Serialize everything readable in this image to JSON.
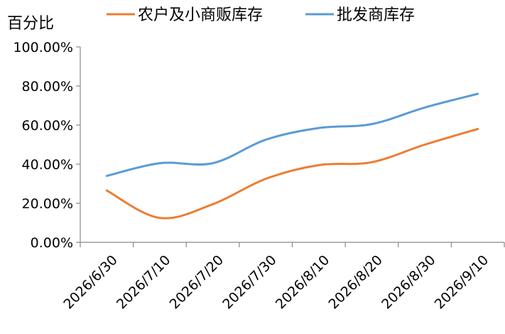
{
  "chart_data": {
    "type": "line",
    "title": "",
    "ylabel": "百分比",
    "xlabel": "",
    "categories": [
      "2026/6/30",
      "2026/7/10",
      "2026/7/20",
      "2026/7/30",
      "2026/8/10",
      "2026/8/20",
      "2026/8/30",
      "2026/9/10"
    ],
    "yticks": [
      "0.00%",
      "20.00%",
      "40.00%",
      "60.00%",
      "80.00%",
      "100.00%"
    ],
    "ylim": [
      0,
      100
    ],
    "legend_position": "top",
    "series": [
      {
        "name": "农户及小商贩库存",
        "color": "#ED7D31",
        "values": [
          26.5,
          12.5,
          19.5,
          32.5,
          39.5,
          41.0,
          50.0,
          58.0
        ]
      },
      {
        "name": "批发商库存",
        "color": "#5B9BD5",
        "values": [
          34.0,
          40.5,
          40.5,
          52.5,
          58.5,
          60.5,
          69.0,
          76.0
        ]
      }
    ]
  }
}
